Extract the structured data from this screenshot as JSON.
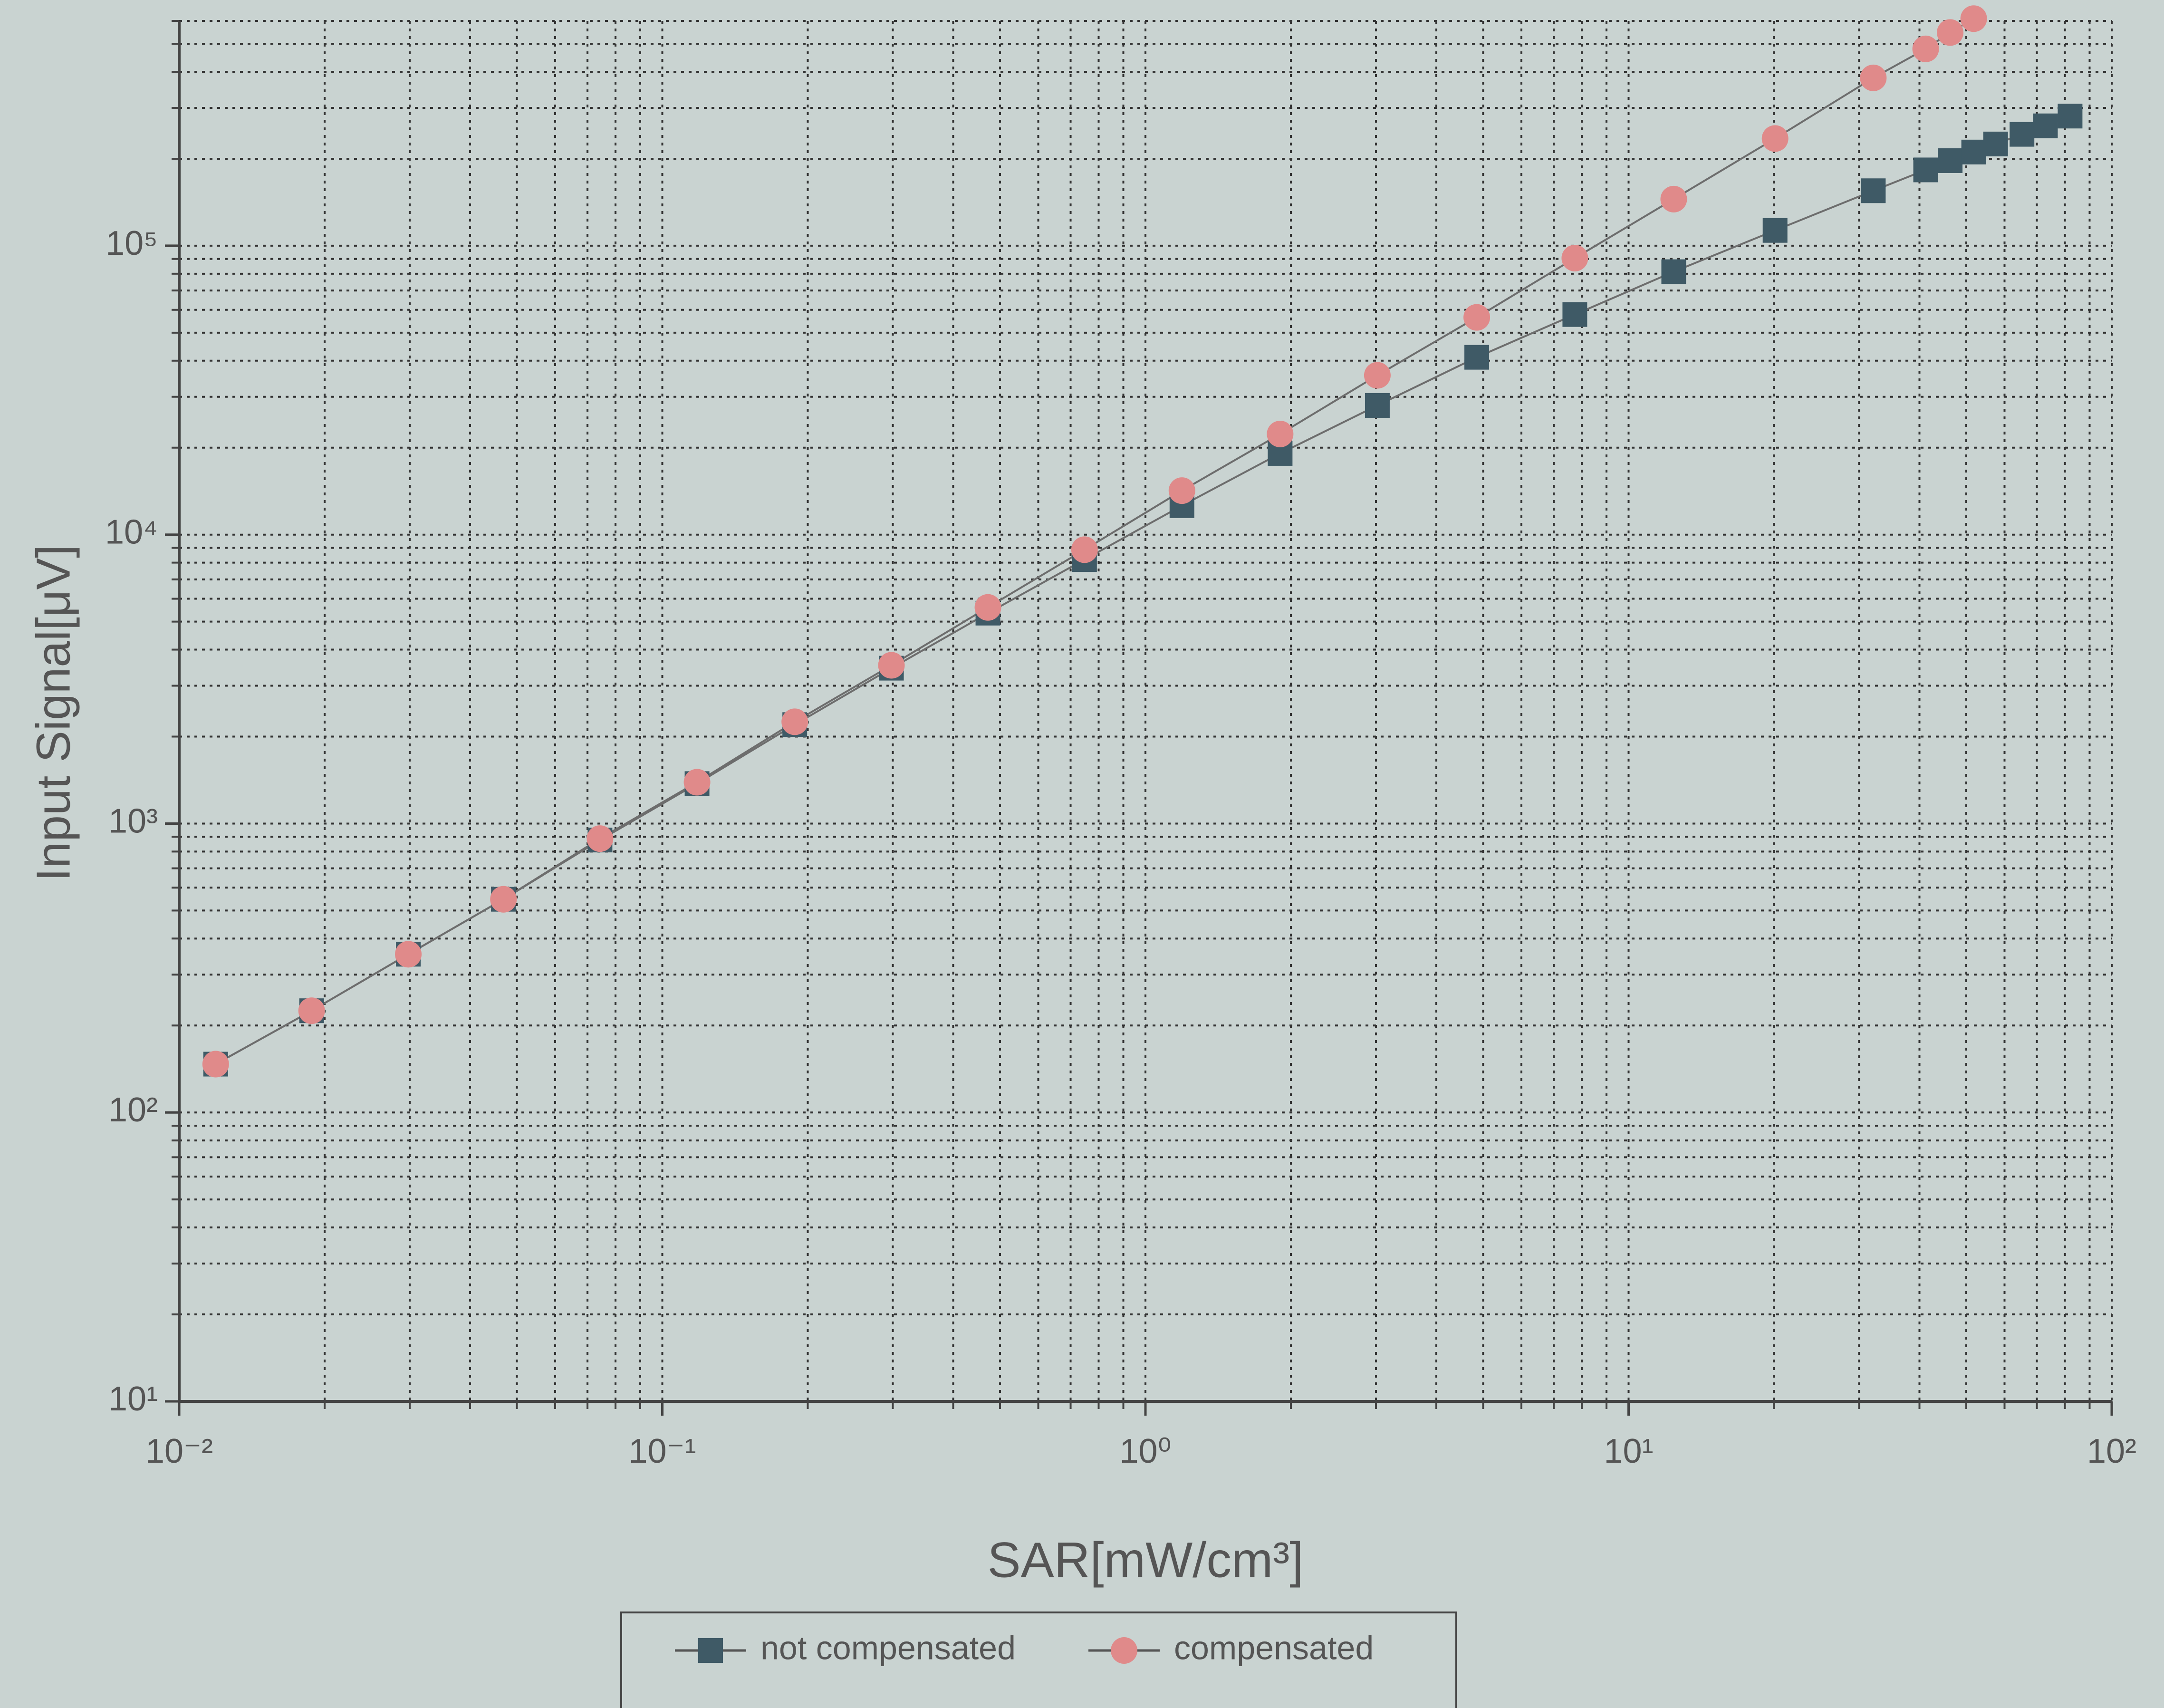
{
  "chart_data": {
    "type": "line",
    "x_label": "SAR[mW/cm³]",
    "y_label": "Input Signal[μV]",
    "log_x": true,
    "log_y": true,
    "grid": true,
    "minor_grid": true,
    "legend_position": "bottom",
    "xlim": [
      0.01,
      100
    ],
    "xticks": [
      {
        "value": 0.01,
        "label": "10⁻²"
      },
      {
        "value": 0.1,
        "label": "10⁻¹"
      },
      {
        "value": 1,
        "label": "10⁰"
      },
      {
        "value": 10,
        "label": "10¹"
      },
      {
        "value": 100,
        "label": "10²"
      }
    ],
    "ylim": [
      10,
      600000
    ],
    "yticks": [
      {
        "value": 10,
        "label": "10¹"
      },
      {
        "value": 100,
        "label": "10²"
      },
      {
        "value": 1000,
        "label": "10³"
      },
      {
        "value": 10000,
        "label": "10⁴"
      },
      {
        "value": 100000,
        "label": "10⁵"
      }
    ],
    "series": [
      {
        "name": "not compensated",
        "color": "#3f5a66",
        "marker": "square",
        "x": [
          0.0119,
          0.0188,
          0.0298,
          0.0469,
          0.0743,
          0.118,
          0.188,
          0.298,
          0.472,
          0.748,
          1.19,
          1.9,
          3.02,
          4.85,
          7.74,
          12.4,
          20.1,
          32.1,
          41.2,
          46.3,
          51.8,
          57.5,
          65.2,
          72.9,
          82
        ],
        "values": [
          147,
          225,
          353,
          547,
          877,
          1375,
          2200,
          3450,
          5350,
          8200,
          12600,
          19100,
          28000,
          41100,
          57800,
          81300,
          113000,
          155000,
          183000,
          197000,
          211000,
          225000,
          243000,
          260000,
          281000
        ]
      },
      {
        "name": "compensated",
        "color": "#e08a8a",
        "marker": "circle",
        "x": [
          0.0119,
          0.0188,
          0.0298,
          0.0469,
          0.0743,
          0.118,
          0.188,
          0.298,
          0.472,
          0.748,
          1.19,
          1.9,
          3.02,
          4.85,
          7.74,
          12.4,
          20.1,
          32.1,
          41.2,
          46.3,
          51.8
        ],
        "values": [
          147,
          225,
          353,
          547,
          887,
          1390,
          2250,
          3530,
          5600,
          8870,
          14200,
          22300,
          35600,
          56500,
          90600,
          145000,
          235000,
          381000,
          480000,
          547000,
          611000
        ]
      }
    ]
  }
}
